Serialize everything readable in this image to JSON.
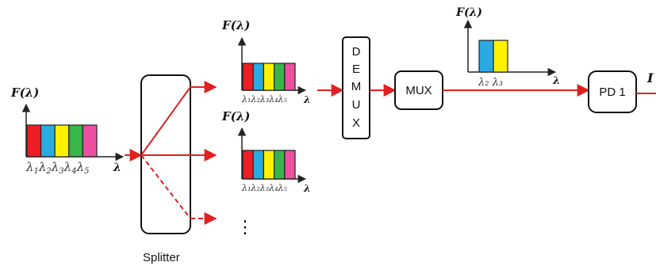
{
  "spectrum_colors": [
    "#ee1c24",
    "#29abe2",
    "#fff200",
    "#39b54a",
    "#ec4fa0"
  ],
  "filtered_colors": [
    "#29abe2",
    "#fff200"
  ],
  "wire_color": "#e02020",
  "axis": {
    "f_label": "F(λ)",
    "lambda_label": "λ"
  },
  "input_spectrum": {
    "ticks": [
      "λ",
      "1",
      "λ",
      "2",
      "λ",
      "3",
      "λ",
      "4",
      "λ",
      "5"
    ]
  },
  "upper_spectrum": {
    "ticks": "λ₁λ₂λ₃λ₄λ₅"
  },
  "middle_spectrum": {
    "ticks": "λ₁λ₂λ₃λ₄λ₅"
  },
  "filtered_spectrum": {
    "ticks": "λ₂ λ₃"
  },
  "blocks": {
    "splitter": "Splitter",
    "demux": [
      "D",
      "E",
      "M",
      "U",
      "X"
    ],
    "mux": "MUX",
    "pd": "PD 1",
    "output": "I"
  },
  "ellipsis": "⋮"
}
